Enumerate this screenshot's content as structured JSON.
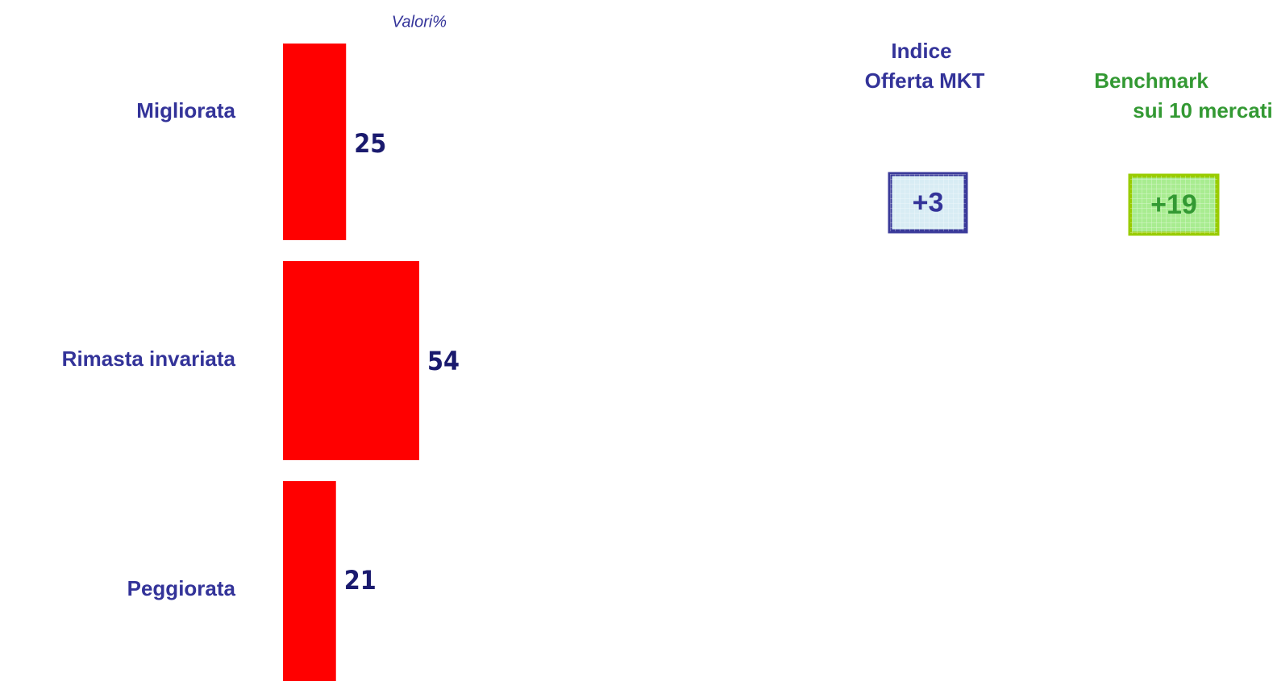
{
  "chart_data": {
    "type": "bar",
    "orientation": "horizontal",
    "subtitle": "Valori%",
    "categories": [
      "Migliorata",
      "Rimasta invariata",
      "Peggiorata"
    ],
    "values": [
      25,
      54,
      21
    ],
    "color": "#ff0000",
    "annotations": [
      {
        "title": [
          "Indice",
          "Offerta MKT"
        ],
        "value": 3,
        "label": "+3",
        "color": "#333399",
        "border": "#3a3a9a",
        "fill": "#d8ecf4"
      },
      {
        "title": [
          "Benchmark",
          "sui 10 mercati"
        ],
        "value": 19,
        "label": "+19",
        "color": "#339933",
        "border": "#99cc00",
        "fill": "#a8ec90"
      }
    ]
  }
}
